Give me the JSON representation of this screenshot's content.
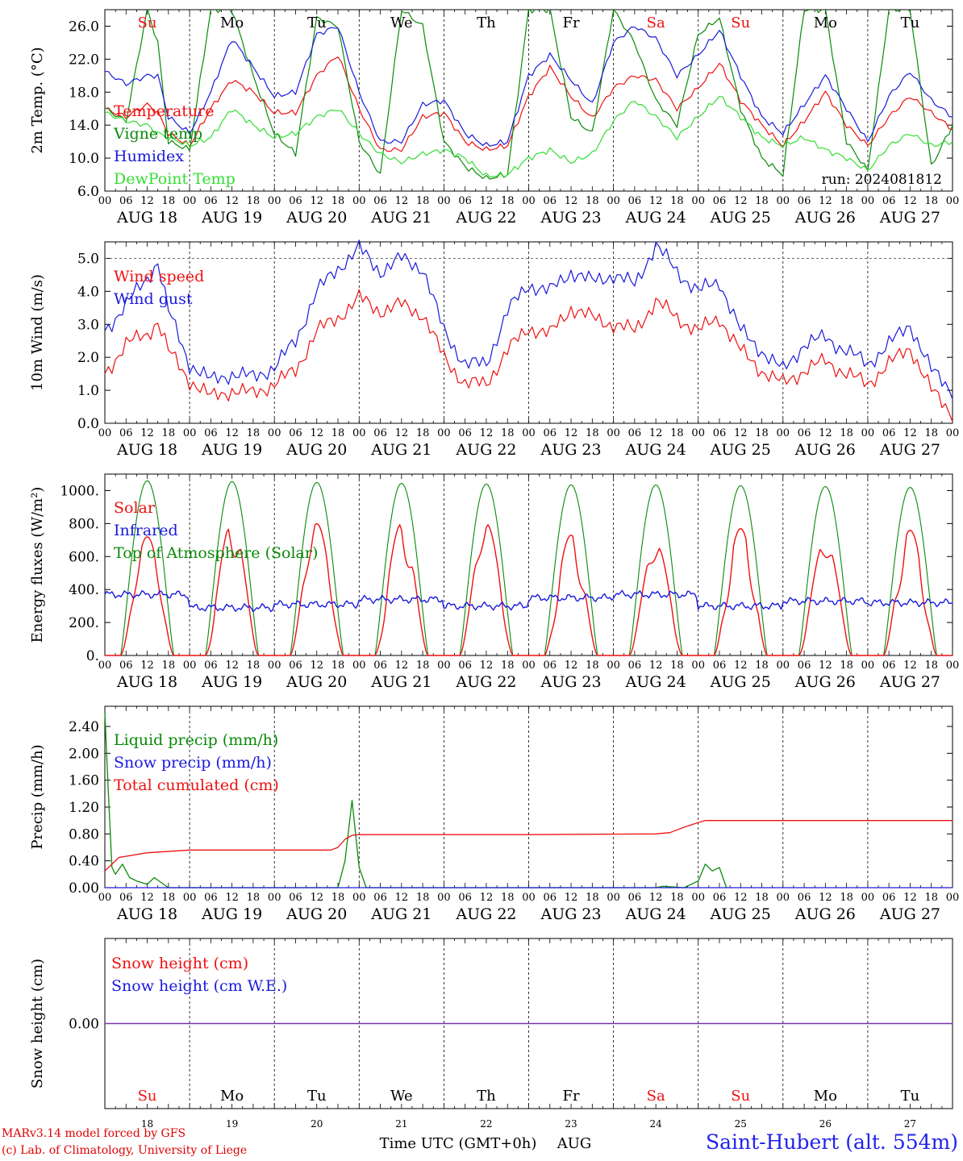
{
  "figure": {
    "run_label": "run: 2024081812",
    "x_axis_title": "Time UTC (GMT+0h)",
    "month_label": "AUG",
    "station": "Saint-Hubert (alt. 554m)",
    "credit_line1": "MARv3.14 model forced by GFS",
    "credit_line2": "(c) Lab. of Climatology, University of Liege",
    "colors": {
      "red": "#ee1111",
      "green": "#0a8a0a",
      "blue": "#1a1add",
      "lightgreen": "#33dd33",
      "purple": "#7733aa"
    }
  },
  "chart_data": [
    {
      "type": "line",
      "ylabel": "2m Temp. (°C)",
      "ylim": [
        6,
        28
      ],
      "yticks": [
        "6.0",
        "10.0",
        "14.0",
        "18.0",
        "22.0",
        "26.0"
      ],
      "day_names": [
        "Su",
        "Mo",
        "Tu",
        "We",
        "Th",
        "Fr",
        "Sa",
        "Su",
        "Mo",
        "Tu"
      ],
      "x_hour_labels": [
        "00",
        "06",
        "12",
        "18"
      ],
      "date_labels": [
        "AUG 18",
        "AUG 19",
        "AUG 20",
        "AUG 21",
        "AUG 22",
        "AUG 23",
        "AUG 24",
        "AUG 25",
        "AUG 26",
        "AUG 27"
      ],
      "x_hours": [
        0,
        6,
        12,
        15,
        18,
        24,
        30,
        36,
        42,
        48,
        54,
        60,
        66,
        72,
        78,
        84,
        90,
        96,
        102,
        108,
        114,
        120,
        126,
        132,
        138,
        144,
        150,
        156,
        162,
        168,
        174,
        180,
        186,
        192,
        198,
        204,
        210,
        216,
        222,
        228,
        234,
        240
      ],
      "series": [
        {
          "name": "Temperature",
          "color": "#ee1111",
          "values": [
            16.0,
            15.0,
            16.5,
            15.5,
            13.0,
            11.5,
            16.0,
            19.5,
            18.0,
            15.5,
            15.5,
            20.0,
            22.5,
            16.0,
            11.0,
            11.0,
            15.0,
            15.5,
            12.0,
            11.0,
            11.5,
            17.5,
            21.0,
            17.5,
            14.8,
            18.5,
            20.0,
            19.5,
            16.0,
            18.5,
            21.5,
            17.0,
            14.0,
            11.5,
            14.5,
            18.0,
            14.0,
            11.5,
            15.0,
            17.5,
            15.5,
            13.5
          ]
        },
        {
          "name": "Vigne temp",
          "color": "#0a8a0a",
          "values": [
            16.0,
            14.5,
            28.0,
            24.0,
            12.0,
            11.0,
            28.0,
            28.0,
            20.0,
            13.0,
            10.5,
            27.0,
            26.0,
            12.0,
            8.0,
            28.0,
            26.0,
            12.0,
            9.0,
            7.5,
            8.0,
            28.0,
            28.0,
            15.0,
            13.0,
            28.0,
            24.0,
            17.0,
            14.0,
            25.0,
            27.0,
            16.0,
            10.0,
            8.0,
            28.0,
            28.0,
            12.0,
            8.5,
            28.0,
            28.0,
            9.0,
            14.0
          ]
        },
        {
          "name": "Humidex",
          "color": "#1a1add",
          "values": [
            20.5,
            19.0,
            20.0,
            20.0,
            15.0,
            13.0,
            18.0,
            24.5,
            21.0,
            17.5,
            18.0,
            25.0,
            26.0,
            18.0,
            12.0,
            12.0,
            16.5,
            17.0,
            13.0,
            11.5,
            12.0,
            20.0,
            22.5,
            19.5,
            16.5,
            24.0,
            26.0,
            24.5,
            20.0,
            22.5,
            25.5,
            20.0,
            15.0,
            13.0,
            16.5,
            20.0,
            16.0,
            12.0,
            17.5,
            20.5,
            17.0,
            15.0
          ]
        },
        {
          "name": "DewPoint Temp",
          "color": "#33dd33",
          "values": [
            15.5,
            14.5,
            14.0,
            13.0,
            12.5,
            11.5,
            12.5,
            16.0,
            14.0,
            12.5,
            13.0,
            15.0,
            16.0,
            13.0,
            10.5,
            9.5,
            10.5,
            11.0,
            10.0,
            7.8,
            8.0,
            10.0,
            11.0,
            9.5,
            10.5,
            14.5,
            17.0,
            15.0,
            12.5,
            15.0,
            17.5,
            15.0,
            12.5,
            11.5,
            12.5,
            11.0,
            10.0,
            8.5,
            11.5,
            13.0,
            11.5,
            12.0
          ]
        }
      ]
    },
    {
      "type": "line",
      "ylabel": "10m Wind (m/s)",
      "ylim": [
        0,
        5.5
      ],
      "yticks": [
        "0.0",
        "1.0",
        "2.0",
        "3.0",
        "4.0",
        "5.0"
      ],
      "x_hours": [
        0,
        6,
        12,
        15,
        18,
        24,
        30,
        36,
        42,
        48,
        54,
        60,
        66,
        72,
        78,
        84,
        90,
        96,
        102,
        108,
        114,
        120,
        126,
        132,
        138,
        144,
        150,
        156,
        162,
        168,
        174,
        180,
        186,
        192,
        198,
        204,
        210,
        216,
        222,
        228,
        234,
        240
      ],
      "series": [
        {
          "name": "Wind speed",
          "color": "#ee1111",
          "values": [
            1.5,
            2.4,
            2.7,
            3.1,
            2.2,
            1.3,
            0.8,
            1.0,
            0.9,
            1.2,
            1.6,
            2.8,
            3.2,
            3.8,
            3.4,
            3.6,
            3.3,
            2.0,
            1.2,
            1.2,
            2.2,
            2.9,
            2.7,
            3.5,
            3.2,
            3.0,
            2.8,
            3.7,
            3.2,
            2.8,
            3.2,
            2.2,
            1.6,
            1.2,
            1.6,
            1.9,
            1.5,
            1.2,
            1.8,
            2.3,
            1.0,
            0.3
          ]
        },
        {
          "name": "Wind gust",
          "color": "#1a1add",
          "values": [
            2.8,
            3.6,
            4.4,
            4.9,
            3.4,
            1.8,
            1.3,
            1.5,
            1.4,
            1.7,
            2.5,
            4.0,
            4.7,
            5.3,
            4.6,
            5.0,
            4.7,
            2.8,
            1.8,
            1.8,
            3.4,
            4.2,
            4.0,
            4.6,
            4.3,
            4.5,
            4.2,
            5.4,
            4.6,
            4.0,
            4.3,
            2.8,
            2.2,
            1.6,
            2.4,
            2.6,
            2.2,
            1.8,
            2.4,
            3.0,
            1.6,
            1.0
          ]
        }
      ]
    },
    {
      "type": "line",
      "ylabel": "Energy fluxes (W/m²)",
      "ylim": [
        0,
        1100
      ],
      "yticks": [
        "0.",
        "200.",
        "400.",
        "600.",
        "800.",
        "1000."
      ],
      "daily_peaks": {
        "top_of_atmosphere": [
          1060,
          1055,
          1050,
          1045,
          1040,
          1035,
          1035,
          1030,
          1025,
          1020
        ],
        "solar": [
          720,
          810,
          800,
          800,
          800,
          730,
          680,
          770,
          700,
          760
        ],
        "infrared_mean": [
          370,
          290,
          310,
          340,
          300,
          350,
          370,
          300,
          330,
          320
        ]
      },
      "series": [
        {
          "name": "Solar",
          "color": "#ee1111"
        },
        {
          "name": "Infrared",
          "color": "#1a1add"
        },
        {
          "name": "Top of Atmosphere (Solar)",
          "color": "#0a8a0a"
        }
      ]
    },
    {
      "type": "line",
      "ylabel": "Precip (mm/h)",
      "ylim": [
        0,
        2.7
      ],
      "yticks": [
        "0.00",
        "0.40",
        "0.80",
        "1.20",
        "1.60",
        "2.00",
        "2.40"
      ],
      "series": [
        {
          "name": "Liquid precip (mm/h)",
          "color": "#0a8a0a",
          "x": [
            0,
            1,
            2,
            3,
            5,
            7,
            9,
            12,
            14,
            18,
            20,
            66,
            68,
            70,
            72,
            74,
            156,
            158,
            164,
            168,
            170,
            172,
            174,
            176
          ],
          "values": [
            2.6,
            1.4,
            0.3,
            0.2,
            0.35,
            0.15,
            0.1,
            0.05,
            0.15,
            0.0,
            0.0,
            0.0,
            0.4,
            1.3,
            0.3,
            0.0,
            0.0,
            0.02,
            0.0,
            0.1,
            0.35,
            0.25,
            0.3,
            0.0
          ]
        },
        {
          "name": "Snow precip (mm/h)",
          "color": "#1a1add",
          "x": [
            0,
            240
          ],
          "values": [
            0.0,
            0.0
          ]
        },
        {
          "name": "Total cumulated (cm)",
          "color": "#ee1111",
          "x": [
            0,
            4,
            12,
            24,
            48,
            64,
            66,
            68,
            70,
            72,
            120,
            156,
            160,
            164,
            168,
            170,
            240
          ],
          "values": [
            0.25,
            0.45,
            0.52,
            0.56,
            0.56,
            0.56,
            0.6,
            0.72,
            0.78,
            0.79,
            0.79,
            0.8,
            0.82,
            0.9,
            0.97,
            1.0,
            1.0
          ]
        }
      ]
    },
    {
      "type": "line",
      "ylabel": "Snow height (cm)",
      "ylim": [
        -1,
        1
      ],
      "yticks": [
        "0.00"
      ],
      "day_names": [
        "Su",
        "Mo",
        "Tu",
        "We",
        "Th",
        "Fr",
        "Sa",
        "Su",
        "Mo",
        "Tu"
      ],
      "day_numbers": [
        "18",
        "19",
        "20",
        "21",
        "22",
        "23",
        "24",
        "25",
        "26",
        "27"
      ],
      "series": [
        {
          "name": "Snow height (cm)",
          "color": "#ee1111",
          "x": [
            0,
            240
          ],
          "values": [
            0,
            0
          ]
        },
        {
          "name": "Snow height (cm W.E.)",
          "color": "#1a1add",
          "x": [
            0,
            240
          ],
          "values": [
            0,
            0
          ]
        }
      ]
    }
  ]
}
